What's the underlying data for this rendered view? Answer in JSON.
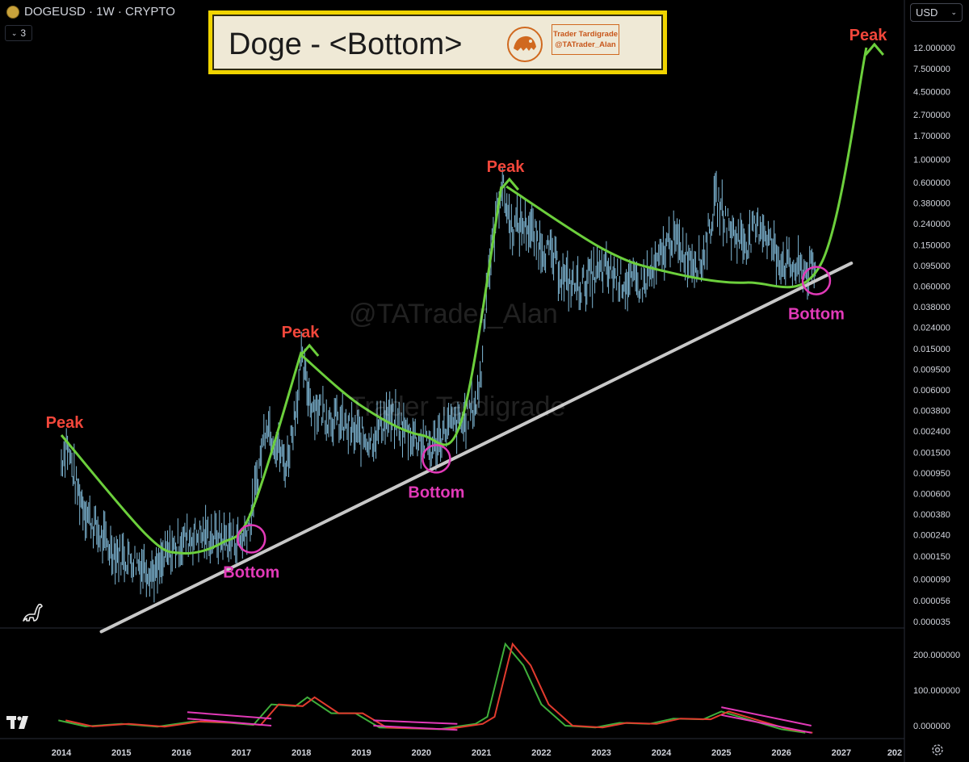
{
  "header": {
    "symbol_text": "DOGEUSD · 1W · CRYPTO",
    "interval_count": "3",
    "currency": "USD"
  },
  "banner": {
    "title": "Doge - <Bottom>",
    "credit_line1": "Trader Tardigrade",
    "credit_line2": "@TATrader_Alan"
  },
  "watermarks": {
    "handle": "@TATrader_Alan",
    "name": "Trader Tardigrade"
  },
  "annotations": {
    "peak_label": "Peak",
    "bottom_label": "Bottom"
  },
  "colors": {
    "background": "#000000",
    "price": "#7fb8d6",
    "curve": "#6ccf3c",
    "trendline": "#c8c8c8",
    "peak": "#f2473b",
    "bottom": "#e23ab8",
    "banner": "#f0d400"
  },
  "chart_data": [
    {
      "type": "line",
      "title": "",
      "series": [
        {
          "name": "",
          "values": []
        }
      ],
      "y_scale": "log",
      "y_tick_labels": [
        "12.000000",
        "7.500000",
        "4.500000",
        "2.700000",
        "1.700000",
        "1.000000",
        "0.600000",
        "0.380000",
        "0.240000",
        "0.150000",
        "0.095000",
        "0.060000",
        "0.038000",
        "0.024000",
        "0.015000",
        "0.009500",
        "0.006000",
        "0.003800",
        "0.002400",
        "0.001500",
        "0.000950",
        "0.000600",
        "0.000380",
        "0.000240",
        "0.000150",
        "0.000090",
        "0.000056",
        "0.000035"
      ],
      "x_tick_labels": [
        "2014",
        "2015",
        "2016",
        "2017",
        "2018",
        "2019",
        "2020",
        "2021",
        "2022",
        "2023",
        "2024",
        "2025",
        "2026",
        "2027",
        "202"
      ],
      "price_path": [
        [
          "2014-01",
          0.0012
        ],
        [
          "2014-02",
          0.0019
        ],
        [
          "2014-04",
          0.0007
        ],
        [
          "2014-06",
          0.0004
        ],
        [
          "2014-09",
          0.00022
        ],
        [
          "2014-12",
          0.00016
        ],
        [
          "2015-03",
          0.00014
        ],
        [
          "2015-06",
          0.00012
        ],
        [
          "2015-08",
          0.0001
        ],
        [
          "2015-10",
          0.00015
        ],
        [
          "2016-01",
          0.00021
        ],
        [
          "2016-04",
          0.00024
        ],
        [
          "2016-07",
          0.00023
        ],
        [
          "2016-10",
          0.00022
        ],
        [
          "2017-01",
          0.00021
        ],
        [
          "2017-03",
          0.00035
        ],
        [
          "2017-05",
          0.0015
        ],
        [
          "2017-06",
          0.0032
        ],
        [
          "2017-08",
          0.0018
        ],
        [
          "2017-10",
          0.0011
        ],
        [
          "2017-12",
          0.0045
        ],
        [
          "2018-01",
          0.011
        ],
        [
          "2018-03",
          0.0045
        ],
        [
          "2018-06",
          0.0035
        ],
        [
          "2018-09",
          0.0028
        ],
        [
          "2018-12",
          0.0022
        ],
        [
          "2019-03",
          0.002
        ],
        [
          "2019-06",
          0.0033
        ],
        [
          "2019-09",
          0.0026
        ],
        [
          "2019-12",
          0.0021
        ],
        [
          "2020-03",
          0.0016
        ],
        [
          "2020-06",
          0.0026
        ],
        [
          "2020-09",
          0.0028
        ],
        [
          "2020-12",
          0.0045
        ],
        [
          "2021-01",
          0.009
        ],
        [
          "2021-02",
          0.06
        ],
        [
          "2021-05",
          0.6
        ],
        [
          "2021-07",
          0.22
        ],
        [
          "2021-10",
          0.24
        ],
        [
          "2021-12",
          0.17
        ],
        [
          "2022-03",
          0.12
        ],
        [
          "2022-06",
          0.065
        ],
        [
          "2022-09",
          0.06
        ],
        [
          "2022-11",
          0.075
        ],
        [
          "2023-02",
          0.085
        ],
        [
          "2023-06",
          0.065
        ],
        [
          "2023-09",
          0.062
        ],
        [
          "2023-12",
          0.09
        ],
        [
          "2024-03",
          0.18
        ],
        [
          "2024-06",
          0.12
        ],
        [
          "2024-09",
          0.1
        ],
        [
          "2024-12",
          0.42
        ],
        [
          "2025-03",
          0.2
        ],
        [
          "2025-06",
          0.16
        ],
        [
          "2025-09",
          0.24
        ],
        [
          "2025-12",
          0.12
        ],
        [
          "2026-03",
          0.09
        ],
        [
          "2026-06",
          0.085
        ],
        [
          "2026-08",
          0.082
        ]
      ],
      "trendline": [
        [
          "2014-09",
          2.8e-05
        ],
        [
          "2027-03",
          0.1
        ]
      ],
      "peaks": [
        [
          "2014-01",
          0.0015
        ],
        [
          "2018-01",
          0.015
        ],
        [
          "2021-05",
          0.6
        ],
        [
          "2027-06",
          12.0
        ]
      ],
      "bottoms": [
        [
          "2017-03",
          0.00022
        ],
        [
          "2020-04",
          0.0013
        ],
        [
          "2026-08",
          0.068
        ]
      ]
    },
    {
      "type": "line",
      "title": "",
      "y_tick_labels": [
        "200.000000",
        "100.000000",
        "0.000000"
      ],
      "series": [
        {
          "name": "",
          "values": []
        },
        {
          "name": "",
          "values": []
        }
      ]
    }
  ]
}
